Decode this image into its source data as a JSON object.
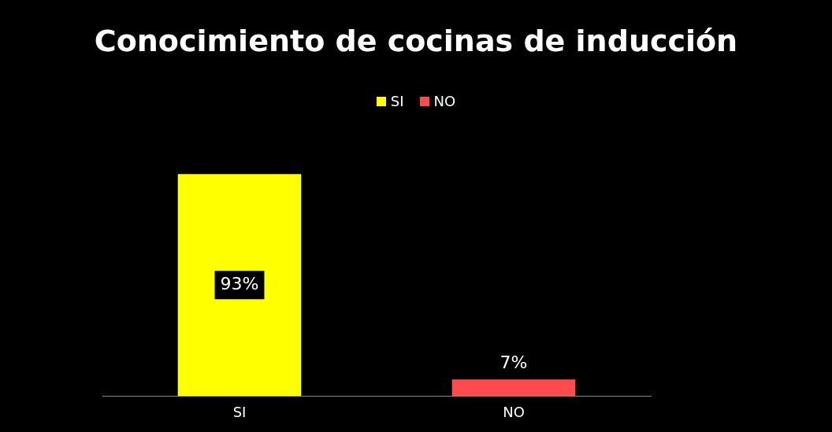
{
  "chart_data": {
    "type": "bar",
    "title": "Conocimiento de cocinas de inducción",
    "categories": [
      "SI",
      "NO"
    ],
    "series": [
      {
        "name": "SI",
        "color": "#ffff00",
        "values": [
          93,
          null
        ],
        "value_labels": [
          "93%",
          null
        ]
      },
      {
        "name": "NO",
        "color": "#ff4b4b",
        "values": [
          null,
          7
        ],
        "value_labels": [
          null,
          "7%"
        ]
      }
    ],
    "stacked": true,
    "legend": "top"
  }
}
